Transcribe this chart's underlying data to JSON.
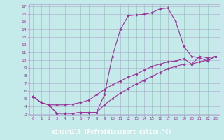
{
  "xlabel": "Windchill (Refroidissement éolien,°C)",
  "background_color": "#c5eaea",
  "grid_color": "#aaaacc",
  "line_color": "#993399",
  "xlabel_bg": "#7070aa",
  "xlabel_fg": "#ffffff",
  "xlim": [
    -0.5,
    23.5
  ],
  "ylim": [
    3,
    17
  ],
  "xticks": [
    0,
    1,
    2,
    3,
    4,
    5,
    6,
    7,
    8,
    9,
    10,
    11,
    12,
    13,
    14,
    15,
    16,
    17,
    18,
    19,
    20,
    21,
    22,
    23
  ],
  "yticks": [
    3,
    4,
    5,
    6,
    7,
    8,
    9,
    10,
    11,
    12,
    13,
    14,
    15,
    16,
    17
  ],
  "curve1_x": [
    0,
    1,
    2,
    3,
    4,
    5,
    6,
    7,
    8,
    9,
    10,
    11,
    12,
    13,
    14,
    15,
    16,
    17,
    18,
    19,
    20,
    21,
    22,
    23
  ],
  "curve1_y": [
    5.3,
    4.5,
    4.2,
    3.1,
    3.1,
    3.1,
    3.2,
    3.2,
    3.2,
    5.5,
    10.5,
    14.0,
    15.8,
    15.9,
    16.0,
    16.2,
    16.7,
    16.8,
    15.0,
    11.8,
    10.5,
    10.3,
    9.9,
    10.5
  ],
  "curve2_x": [
    0,
    1,
    2,
    3,
    4,
    5,
    6,
    7,
    8,
    9,
    10,
    11,
    12,
    13,
    14,
    15,
    16,
    17,
    18,
    19,
    20,
    21,
    22,
    23
  ],
  "curve2_y": [
    5.3,
    4.5,
    4.2,
    4.2,
    4.2,
    4.3,
    4.5,
    4.8,
    5.5,
    6.2,
    6.8,
    7.3,
    7.8,
    8.2,
    8.7,
    9.2,
    9.5,
    9.8,
    9.9,
    10.2,
    9.5,
    10.5,
    10.3,
    10.5
  ],
  "curve3_x": [
    0,
    1,
    2,
    3,
    4,
    5,
    6,
    7,
    8,
    9,
    10,
    11,
    12,
    13,
    14,
    15,
    16,
    17,
    18,
    19,
    20,
    21,
    22,
    23
  ],
  "curve3_y": [
    5.3,
    4.5,
    4.2,
    3.1,
    3.1,
    3.1,
    3.2,
    3.2,
    3.2,
    4.2,
    5.0,
    5.7,
    6.3,
    6.9,
    7.4,
    7.9,
    8.4,
    8.9,
    9.2,
    9.5,
    9.5,
    9.8,
    10.0,
    10.5
  ]
}
